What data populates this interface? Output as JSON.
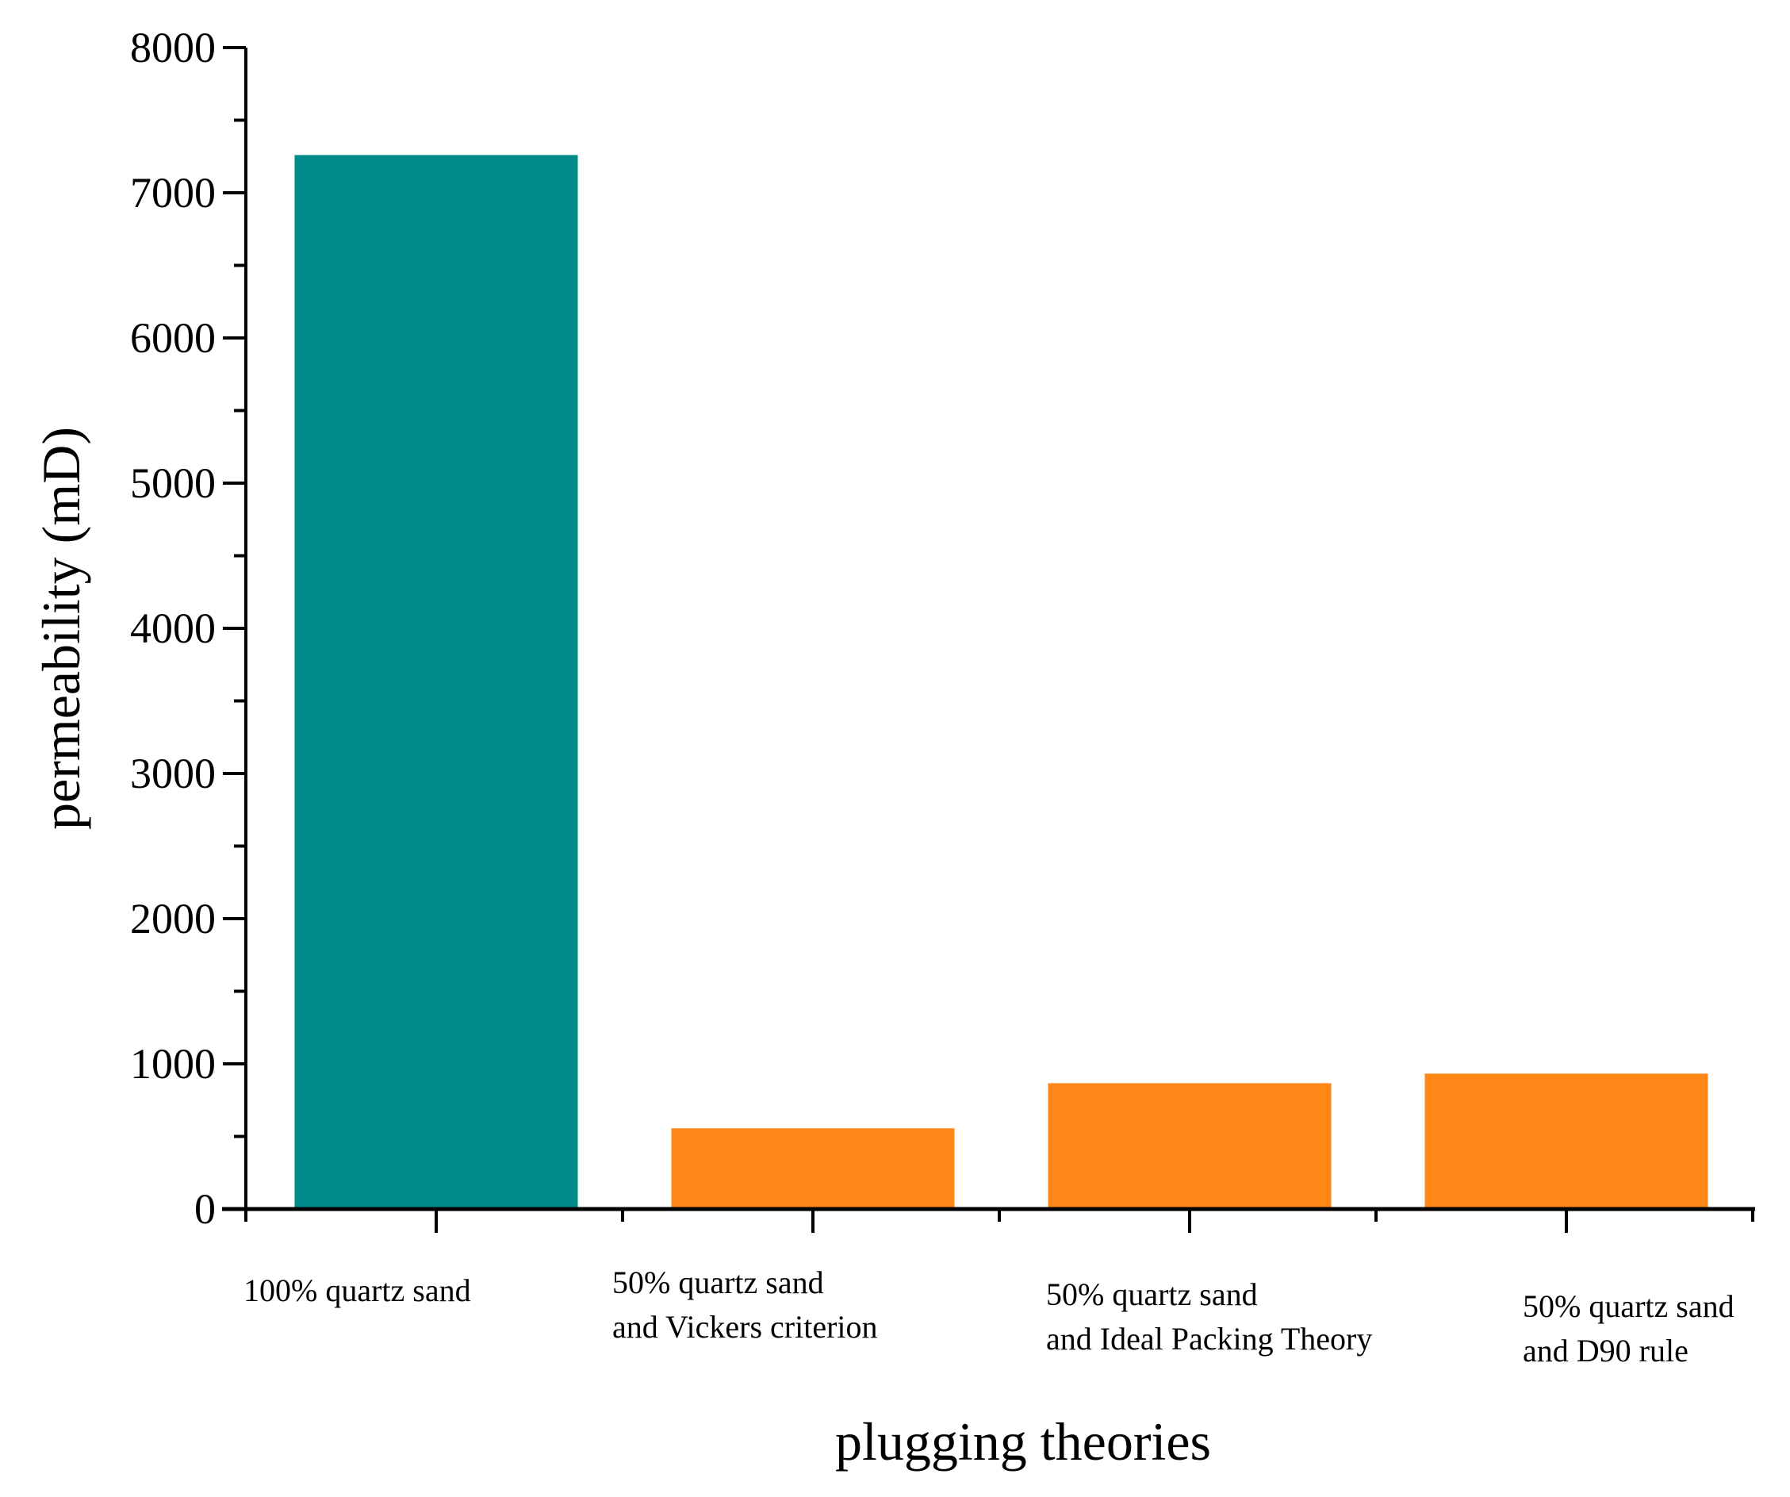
{
  "chart_data": {
    "type": "bar",
    "title": "",
    "xlabel": "plugging theories",
    "ylabel": "permeability (mD)",
    "ylim": [
      0,
      8000
    ],
    "yticks": [
      0,
      1000,
      2000,
      3000,
      4000,
      5000,
      6000,
      7000,
      8000
    ],
    "yminor_step": 500,
    "grid": false,
    "legend": "none",
    "categories": [
      [
        "100% quartz sand"
      ],
      [
        "50% quartz sand",
        "and Vickers criterion"
      ],
      [
        "50% quartz sand",
        "and Ideal Packing Theory"
      ],
      [
        "50% quartz sand",
        "and D90 rule"
      ]
    ],
    "values": [
      7260,
      556,
      867,
      933
    ],
    "colors": [
      "#008B88",
      "#FF8717",
      "#FF8717",
      "#FF8717"
    ]
  }
}
